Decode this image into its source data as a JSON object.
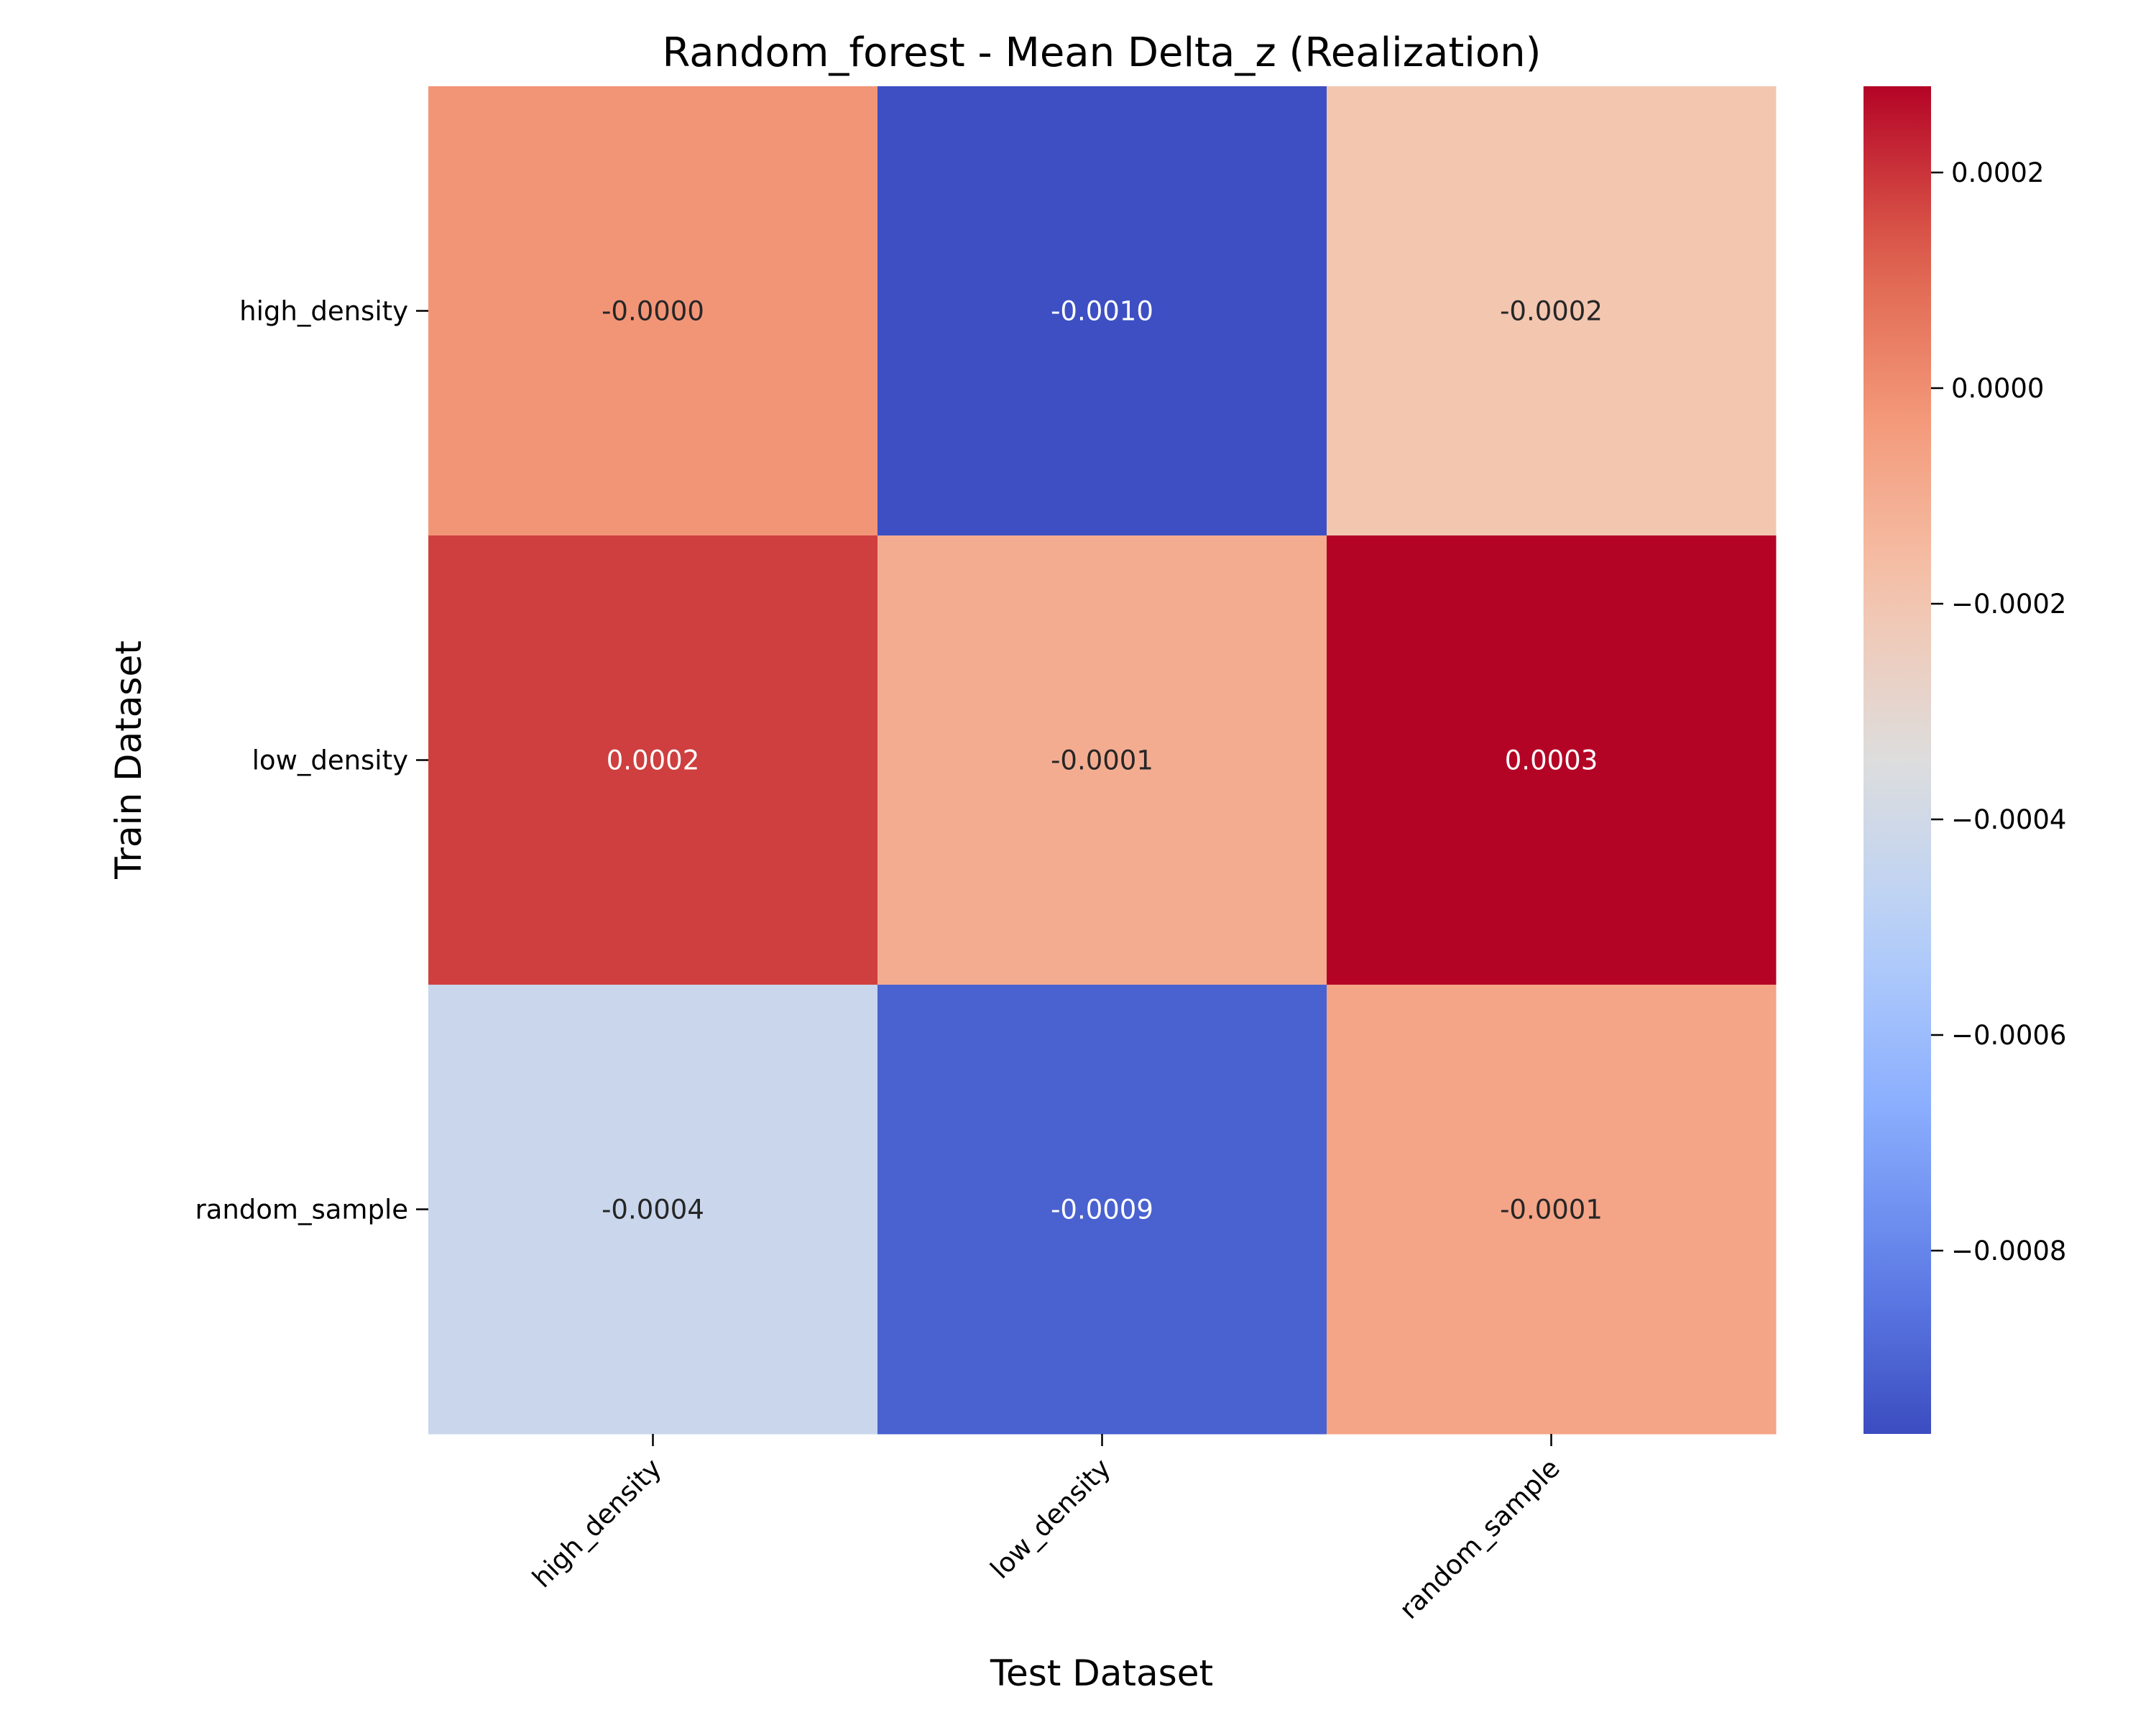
{
  "chart_data": {
    "type": "heatmap",
    "title": "Random_forest - Mean Delta_z (Realization)",
    "xlabel": "Test Dataset",
    "ylabel": "Train Dataset",
    "x_categories": [
      "high_density",
      "low_density",
      "random_sample"
    ],
    "y_categories": [
      "high_density",
      "low_density",
      "random_sample"
    ],
    "values": [
      [
        -2e-05,
        -0.00096,
        -0.0002
      ],
      [
        0.00018,
        -0.0001,
        0.00028
      ],
      [
        -0.00043,
        -0.00091,
        -7e-05
      ]
    ],
    "cell_labels": [
      [
        "-0.0000",
        "-0.0010",
        "-0.0002"
      ],
      [
        "0.0002",
        "-0.0001",
        "0.0003"
      ],
      [
        "-0.0004",
        "-0.0009",
        "-0.0001"
      ]
    ],
    "colormap": "coolwarm",
    "colorbar": {
      "range": [
        -0.00097,
        0.00028
      ],
      "ticks": [
        0.0002,
        0.0,
        -0.0002,
        -0.0004,
        -0.0006,
        -0.0008
      ],
      "tick_labels": [
        "0.0002",
        "0.0000",
        "−0.0002",
        "−0.0004",
        "−0.0006",
        "−0.0008"
      ]
    },
    "grid": false,
    "legend": "colorbar-right"
  }
}
